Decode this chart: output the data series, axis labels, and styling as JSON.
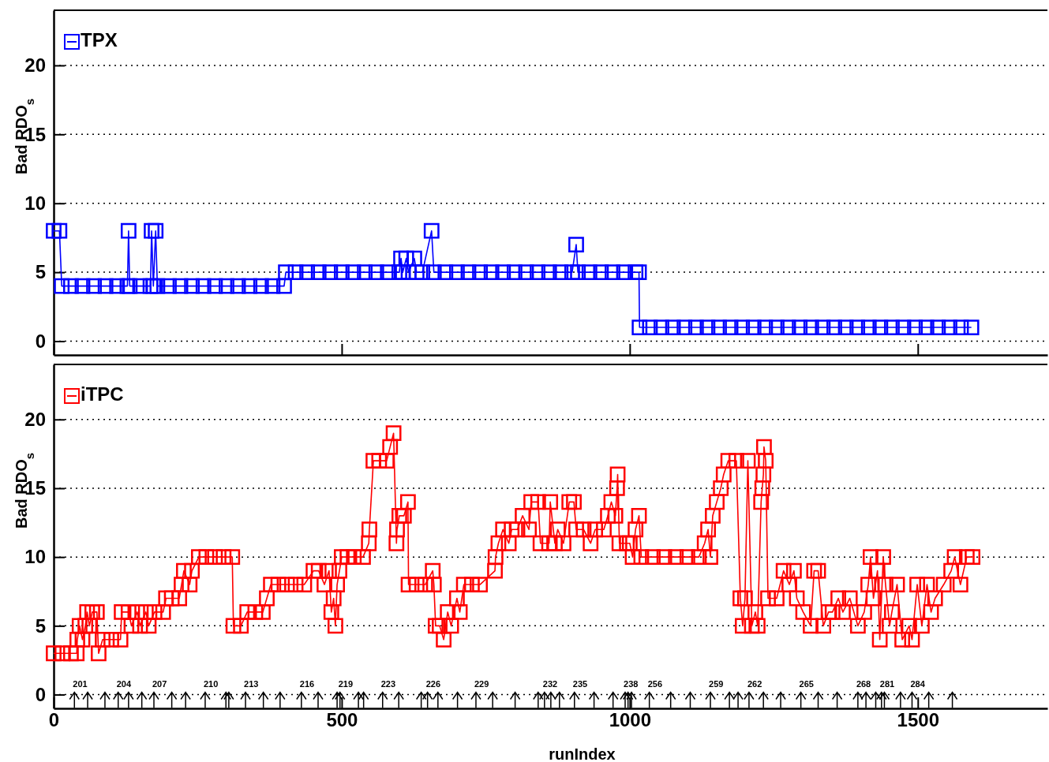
{
  "chart_data": [
    {
      "type": "line",
      "ylabel": "Bad RDO$_{s}$",
      "xlim": [
        0,
        1725
      ],
      "xticks": [
        0,
        500,
        1000,
        1500
      ],
      "ylim": [
        -1,
        24
      ],
      "yticks": [
        0,
        5,
        10,
        15,
        20
      ],
      "grid": "y",
      "legend": "top left",
      "marker": "square",
      "line_style": "solid",
      "tick_labels": "y",
      "series": [
        {
          "name": "TPX",
          "color": "#0000ff",
          "x": [
            0,
            10,
            14,
            30,
            50,
            70,
            90,
            110,
            128,
            130,
            132,
            150,
            168,
            170,
            173,
            177,
            180,
            200,
            220,
            240,
            260,
            280,
            300,
            320,
            340,
            360,
            380,
            400,
            403,
            420,
            440,
            460,
            480,
            500,
            520,
            540,
            560,
            580,
            600,
            603,
            606,
            612,
            616,
            626,
            630,
            640,
            656,
            660,
            680,
            700,
            720,
            740,
            760,
            780,
            800,
            820,
            840,
            860,
            880,
            900,
            907,
            910,
            930,
            950,
            970,
            990,
            1010,
            1016,
            1017,
            1035,
            1055,
            1075,
            1095,
            1115,
            1135,
            1155,
            1175,
            1195,
            1215,
            1235,
            1255,
            1275,
            1295,
            1315,
            1335,
            1355,
            1375,
            1395,
            1415,
            1435,
            1455,
            1475,
            1495,
            1515,
            1535,
            1555,
            1575,
            1593
          ],
          "values": [
            8,
            8,
            4,
            4,
            4,
            4,
            4,
            4,
            4,
            8,
            4,
            4,
            4,
            8,
            4,
            8,
            4,
            4,
            4,
            4,
            4,
            4,
            4,
            4,
            4,
            4,
            4,
            4,
            5,
            5,
            5,
            5,
            5,
            5,
            5,
            5,
            5,
            5,
            5,
            6,
            5,
            6,
            5,
            6,
            5,
            5,
            8,
            5,
            5,
            5,
            5,
            5,
            5,
            5,
            5,
            5,
            5,
            5,
            5,
            5,
            7,
            5,
            5,
            5,
            5,
            5,
            5,
            5,
            1,
            1,
            1,
            1,
            1,
            1,
            1,
            1,
            1,
            1,
            1,
            1,
            1,
            1,
            1,
            1,
            1,
            1,
            1,
            1,
            1,
            1,
            1,
            1,
            1,
            1,
            1,
            1,
            1,
            1
          ]
        }
      ]
    },
    {
      "type": "line",
      "ylabel": "Bad RDO$_{s}$",
      "xlabel": "runIndex",
      "xlim": [
        0,
        1725
      ],
      "xticks": [
        0,
        500,
        1000,
        1500
      ],
      "ylim": [
        -1,
        24
      ],
      "yticks": [
        0,
        5,
        10,
        15,
        20
      ],
      "grid": "y",
      "legend": "top left",
      "marker": "square",
      "line_style": "solid",
      "series": [
        {
          "name": "iTPC",
          "color": "#ff0000",
          "x": [
            0,
            15,
            30,
            40,
            41,
            45,
            50,
            55,
            58,
            62,
            67,
            75,
            78,
            85,
            100,
            116,
            118,
            130,
            135,
            145,
            150,
            160,
            165,
            175,
            190,
            195,
            205,
            218,
            222,
            226,
            236,
            240,
            252,
            265,
            280,
            295,
            310,
            312,
            325,
            336,
            350,
            363,
            370,
            377,
            390,
            405,
            420,
            435,
            451,
            460,
            470,
            478,
            482,
            486,
            489,
            492,
            496,
            500,
            510,
            521,
            537,
            547,
            548,
            555,
            565,
            578,
            584,
            590,
            595,
            596,
            600,
            608,
            615,
            616,
            630,
            645,
            658,
            660,
            663,
            670,
            677,
            684,
            690,
            700,
            705,
            712,
            726,
            740,
            766,
            767,
            772,
            780,
            790,
            795,
            805,
            814,
            825,
            829,
            841,
            845,
            860,
            862,
            870,
            875,
            885,
            895,
            903,
            907,
            920,
            932,
            940,
            955,
            962,
            968,
            975,
            978,
            979,
            982,
            995,
            1000,
            1005,
            1010,
            1016,
            1020,
            1040,
            1060,
            1080,
            1100,
            1120,
            1130,
            1136,
            1140,
            1144,
            1151,
            1158,
            1163,
            1171,
            1185,
            1192,
            1196,
            1200,
            1205,
            1212,
            1218,
            1222,
            1228,
            1230,
            1232,
            1233,
            1236,
            1240,
            1255,
            1267,
            1277,
            1285,
            1290,
            1301,
            1314,
            1320,
            1327,
            1336,
            1345,
            1352,
            1362,
            1370,
            1382,
            1396,
            1407,
            1414,
            1418,
            1423,
            1430,
            1434,
            1440,
            1444,
            1451,
            1455,
            1464,
            1473,
            1485,
            1490,
            1499,
            1507,
            1516,
            1523,
            1530,
            1545,
            1558,
            1564,
            1574,
            1585,
            1595
          ],
          "values": [
            3,
            3,
            3,
            3,
            4,
            5,
            4,
            5,
            6,
            5,
            6,
            6,
            3,
            4,
            4,
            4,
            6,
            6,
            5,
            6,
            5,
            6,
            5,
            6,
            6,
            7,
            7,
            7,
            8,
            9,
            8,
            9,
            10,
            10,
            10,
            10,
            10,
            5,
            5,
            6,
            6,
            6,
            7,
            8,
            8,
            8,
            8,
            8,
            9,
            9,
            8,
            9,
            6,
            7,
            5,
            8,
            9,
            10,
            10,
            10,
            10,
            11,
            12,
            17,
            17,
            17,
            18,
            19,
            11,
            12,
            13,
            13,
            14,
            8,
            8,
            8,
            9,
            8,
            5,
            5,
            4,
            6,
            5,
            7,
            6,
            8,
            8,
            8,
            9,
            10,
            11,
            12,
            11,
            12,
            12,
            13,
            12,
            14,
            14,
            11,
            11,
            14,
            11,
            12,
            11,
            14,
            14,
            12,
            12,
            11,
            12,
            12,
            13,
            14,
            13,
            15,
            16,
            11,
            11,
            11,
            10,
            12,
            13,
            10,
            10,
            10,
            10,
            10,
            10,
            11,
            12,
            10,
            13,
            14,
            15,
            16,
            17,
            17,
            7,
            5,
            7,
            17,
            5,
            6,
            5,
            14,
            15,
            16,
            18,
            17,
            7,
            7,
            9,
            8,
            9,
            7,
            6,
            5,
            9,
            9,
            5,
            6,
            6,
            7,
            6,
            7,
            5,
            6,
            8,
            10,
            7,
            9,
            4,
            10,
            8,
            5,
            6,
            8,
            4,
            5,
            4,
            8,
            5,
            8,
            6,
            7,
            8,
            9,
            10,
            8,
            10,
            10
          ]
        },
        {
          "type": "scatter",
          "color": "#000000",
          "marker": "cross",
          "x": [
            36,
            59,
            89,
            112,
            130,
            153,
            174,
            205,
            229,
            263,
            299,
            304,
            333,
            364,
            393,
            430,
            459,
            492,
            497,
            529,
            538,
            571,
            599,
            638,
            649,
            667,
            701,
            733,
            762,
            801,
            841,
            852,
            863,
            878,
            904,
            938,
            971,
            992,
            997,
            1003,
            1034,
            1071,
            1105,
            1140,
            1173,
            1188,
            1207,
            1232,
            1262,
            1297,
            1327,
            1360,
            1396,
            1410,
            1427,
            1437,
            1442,
            1470,
            1490,
            1519,
            1560
          ],
          "values": [
            -0.4,
            -0.4,
            -0.4,
            -0.4,
            -0.4,
            -0.4,
            -0.4,
            -0.4,
            -0.4,
            -0.4,
            -0.4,
            -0.4,
            -0.4,
            -0.4,
            -0.4,
            -0.4,
            -0.4,
            -0.4,
            -0.4,
            -0.4,
            -0.4,
            -0.4,
            -0.4,
            -0.4,
            -0.4,
            -0.4,
            -0.4,
            -0.4,
            -0.4,
            -0.4,
            -0.4,
            -0.4,
            -0.4,
            -0.4,
            -0.4,
            -0.4,
            -0.4,
            -0.4,
            -0.4,
            -0.4,
            -0.4,
            -0.4,
            -0.4,
            -0.4,
            -0.4,
            -0.4,
            -0.4,
            -0.4,
            -0.4,
            -0.4,
            -0.4,
            -0.4,
            -0.4,
            -0.4,
            -0.4,
            -0.4,
            -0.4,
            -0.4,
            -0.4,
            -0.4,
            -0.4
          ]
        }
      ],
      "annotations": [
        {
          "text": "201",
          "x": 36,
          "y": -0.4
        },
        {
          "text": "204",
          "x": 112,
          "y": -0.4
        },
        {
          "text": "207",
          "x": 174,
          "y": -0.4
        },
        {
          "text": "210",
          "x": 263,
          "y": -0.4
        },
        {
          "text": "213",
          "x": 333,
          "y": -0.4
        },
        {
          "text": "216",
          "x": 430,
          "y": -0.4
        },
        {
          "text": "219",
          "x": 497,
          "y": -0.4
        },
        {
          "text": "223",
          "x": 571,
          "y": -0.4
        },
        {
          "text": "226",
          "x": 649,
          "y": -0.4
        },
        {
          "text": "229",
          "x": 733,
          "y": -0.4
        },
        {
          "text": "232",
          "x": 852,
          "y": -0.4
        },
        {
          "text": "235",
          "x": 904,
          "y": -0.4
        },
        {
          "text": "238",
          "x": 992,
          "y": -0.4
        },
        {
          "text": "256",
          "x": 1034,
          "y": -0.4
        },
        {
          "text": "259",
          "x": 1140,
          "y": -0.4
        },
        {
          "text": "262",
          "x": 1207,
          "y": -0.4
        },
        {
          "text": "265",
          "x": 1297,
          "y": -0.4
        },
        {
          "text": "268",
          "x": 1396,
          "y": -0.4
        },
        {
          "text": "281",
          "x": 1437,
          "y": -0.4
        },
        {
          "text": "284",
          "x": 1490,
          "y": -0.4
        }
      ]
    }
  ]
}
